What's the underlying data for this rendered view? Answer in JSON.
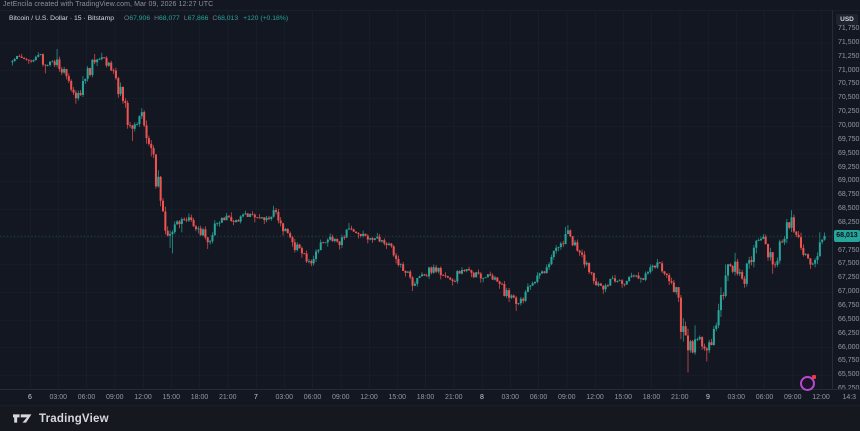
{
  "page": {
    "attribution": "JetEncila created with TradingView.com, Mar 09, 2026 12:27 UTC"
  },
  "legend": {
    "title": "Bitcoin / U.S. Dollar · 15 · Bitstamp",
    "ohlc": {
      "o_label": "O",
      "o": "67,906",
      "h_label": "H",
      "h": "68,077",
      "l_label": "L",
      "l": "67,866",
      "c_label": "C",
      "c": "68,013"
    },
    "change": "+120 (+0.18%)"
  },
  "price_axis": {
    "currency": "USD",
    "last_price": 68013,
    "last_price_label": "68,013",
    "ticks": [
      {
        "v": 71750,
        "label": "71,750"
      },
      {
        "v": 71500,
        "label": "71,500"
      },
      {
        "v": 71250,
        "label": "71,250"
      },
      {
        "v": 71000,
        "label": "71,000"
      },
      {
        "v": 70750,
        "label": "70,750"
      },
      {
        "v": 70500,
        "label": "70,500"
      },
      {
        "v": 70250,
        "label": "70,250"
      },
      {
        "v": 70000,
        "label": "70,000"
      },
      {
        "v": 69750,
        "label": "69,750"
      },
      {
        "v": 69500,
        "label": "69,500"
      },
      {
        "v": 69250,
        "label": "69,250"
      },
      {
        "v": 69000,
        "label": "69,000"
      },
      {
        "v": 68750,
        "label": "68,750"
      },
      {
        "v": 68500,
        "label": "68,500"
      },
      {
        "v": 68250,
        "label": "68,250"
      },
      {
        "v": 67750,
        "label": "67,750"
      },
      {
        "v": 67500,
        "label": "67,500"
      },
      {
        "v": 67250,
        "label": "67,250"
      },
      {
        "v": 67000,
        "label": "67,000"
      },
      {
        "v": 66750,
        "label": "66,750"
      },
      {
        "v": 66500,
        "label": "66,500"
      },
      {
        "v": 66250,
        "label": "66,250"
      },
      {
        "v": 66000,
        "label": "66,000"
      },
      {
        "v": 65750,
        "label": "65,750"
      },
      {
        "v": 65500,
        "label": "65,500"
      },
      {
        "v": 65250,
        "label": "65,250"
      }
    ]
  },
  "time_axis": {
    "ticks": [
      {
        "t": 0,
        "label": "6",
        "day": true
      },
      {
        "t": 3,
        "label": "03:00"
      },
      {
        "t": 6,
        "label": "06:00"
      },
      {
        "t": 9,
        "label": "09:00"
      },
      {
        "t": 12,
        "label": "12:00"
      },
      {
        "t": 15,
        "label": "15:00"
      },
      {
        "t": 18,
        "label": "18:00"
      },
      {
        "t": 21,
        "label": "21:00"
      },
      {
        "t": 24,
        "label": "7",
        "day": true
      },
      {
        "t": 27,
        "label": "03:00"
      },
      {
        "t": 30,
        "label": "06:00"
      },
      {
        "t": 33,
        "label": "09:00"
      },
      {
        "t": 36,
        "label": "12:00"
      },
      {
        "t": 39,
        "label": "15:00"
      },
      {
        "t": 42,
        "label": "18:00"
      },
      {
        "t": 45,
        "label": "21:00"
      },
      {
        "t": 48,
        "label": "8",
        "day": true
      },
      {
        "t": 51,
        "label": "03:00"
      },
      {
        "t": 54,
        "label": "06:00"
      },
      {
        "t": 57,
        "label": "09:00"
      },
      {
        "t": 60,
        "label": "12:00"
      },
      {
        "t": 63,
        "label": "15:00"
      },
      {
        "t": 66,
        "label": "18:00"
      },
      {
        "t": 69,
        "label": "21:00"
      },
      {
        "t": 72,
        "label": "9",
        "day": true
      },
      {
        "t": 75,
        "label": "03:00"
      },
      {
        "t": 78,
        "label": "06:00"
      },
      {
        "t": 81,
        "label": "09:00"
      },
      {
        "t": 84,
        "label": "12:00"
      },
      {
        "t": 87,
        "label": "14:3",
        "grid": false
      }
    ]
  },
  "footer": {
    "brand": "TradingView"
  },
  "colors": {
    "bg": "#131722",
    "up": "#26a69a",
    "down": "#ef5350",
    "grid": "#1d2330",
    "dotted_price_line": "rgba(42,166,154,0.5)",
    "axis_text": "#9598a1",
    "day_text": "#ccd0d9",
    "badge_bg": "#26a69a",
    "badge_text": "#0b0e15",
    "sticker": "#b44bd0",
    "sticker_dot": "#f23645"
  },
  "chart_data": {
    "type": "candlestick",
    "symbol": "Bitcoin / U.S. Dollar",
    "exchange": "Bitstamp",
    "interval": "15",
    "ylim": [
      65250,
      71750
    ],
    "y_tick_step": 250,
    "t_start_hours": -2,
    "bar_hours": 1,
    "last_bar_partial": true,
    "current_bar": {
      "open": 67906,
      "high": 68077,
      "low": 67866,
      "close": 68013,
      "change": "+120 (+0.18%)"
    },
    "ohlc_hourly": [
      [
        71150,
        71290,
        71090,
        71250
      ],
      [
        71250,
        71300,
        71120,
        71180
      ],
      [
        71180,
        71330,
        71140,
        71280
      ],
      [
        71280,
        71310,
        70950,
        71100
      ],
      [
        71100,
        71390,
        71060,
        71200
      ],
      [
        71200,
        71250,
        70840,
        70900
      ],
      [
        70900,
        70950,
        70400,
        70500
      ],
      [
        70500,
        70900,
        70460,
        70850
      ],
      [
        70850,
        71300,
        70800,
        71150
      ],
      [
        71150,
        71320,
        71080,
        71230
      ],
      [
        71230,
        71260,
        70940,
        71000
      ],
      [
        71000,
        71050,
        70400,
        70450
      ],
      [
        70450,
        70500,
        69730,
        69950
      ],
      [
        69950,
        70320,
        69900,
        70250
      ],
      [
        70250,
        70280,
        69450,
        69600
      ],
      [
        69600,
        69650,
        68550,
        68650
      ],
      [
        68650,
        68700,
        67800,
        68050
      ],
      [
        68050,
        68300,
        67700,
        68230
      ],
      [
        68230,
        68420,
        68080,
        68350
      ],
      [
        68350,
        68400,
        68060,
        68150
      ],
      [
        68150,
        68200,
        67780,
        67900
      ],
      [
        67900,
        68300,
        67860,
        68250
      ],
      [
        68250,
        68430,
        68180,
        68380
      ],
      [
        68380,
        68440,
        68210,
        68300
      ],
      [
        68300,
        68470,
        68240,
        68420
      ],
      [
        68420,
        68460,
        68260,
        68350
      ],
      [
        68350,
        68410,
        68230,
        68300
      ],
      [
        68300,
        68560,
        68260,
        68480
      ],
      [
        68480,
        68520,
        68020,
        68100
      ],
      [
        68100,
        68160,
        67820,
        67900
      ],
      [
        67900,
        67960,
        67620,
        67700
      ],
      [
        67700,
        67750,
        67470,
        67520
      ],
      [
        67520,
        67950,
        67480,
        67900
      ],
      [
        67900,
        68060,
        67820,
        68000
      ],
      [
        68000,
        68040,
        67770,
        67850
      ],
      [
        67850,
        68250,
        67800,
        68150
      ],
      [
        68150,
        68200,
        67970,
        68050
      ],
      [
        68050,
        68110,
        67880,
        67950
      ],
      [
        67950,
        68070,
        67890,
        68000
      ],
      [
        68000,
        68050,
        67780,
        67850
      ],
      [
        67850,
        67900,
        67520,
        67600
      ],
      [
        67600,
        67660,
        67280,
        67350
      ],
      [
        67350,
        67400,
        67020,
        67150
      ],
      [
        67150,
        67360,
        67100,
        67300
      ],
      [
        67300,
        67500,
        67240,
        67450
      ],
      [
        67450,
        67490,
        67230,
        67300
      ],
      [
        67300,
        67360,
        67120,
        67200
      ],
      [
        67200,
        67450,
        67150,
        67400
      ],
      [
        67400,
        67460,
        67270,
        67350
      ],
      [
        67350,
        67410,
        67170,
        67250
      ],
      [
        67250,
        67370,
        67180,
        67300
      ],
      [
        67300,
        67340,
        67060,
        67150
      ],
      [
        67150,
        67200,
        66820,
        66900
      ],
      [
        66900,
        66960,
        66660,
        66800
      ],
      [
        66800,
        67160,
        66760,
        67100
      ],
      [
        67100,
        67360,
        67040,
        67300
      ],
      [
        67300,
        67500,
        67240,
        67450
      ],
      [
        67450,
        67850,
        67400,
        67800
      ],
      [
        67800,
        68180,
        67740,
        68050
      ],
      [
        68050,
        68210,
        67830,
        67900
      ],
      [
        67900,
        67950,
        67440,
        67500
      ],
      [
        67500,
        67560,
        67140,
        67200
      ],
      [
        67200,
        67260,
        66970,
        67050
      ],
      [
        67050,
        67300,
        67000,
        67250
      ],
      [
        67250,
        67310,
        67080,
        67150
      ],
      [
        67150,
        67350,
        67100,
        67300
      ],
      [
        67300,
        67360,
        67170,
        67250
      ],
      [
        67250,
        67500,
        67200,
        67450
      ],
      [
        67450,
        67600,
        67380,
        67520
      ],
      [
        67520,
        67560,
        67130,
        67200
      ],
      [
        67200,
        67260,
        66820,
        66900
      ],
      [
        66900,
        66950,
        65550,
        65950
      ],
      [
        65950,
        66400,
        65870,
        66150
      ],
      [
        66150,
        66220,
        65750,
        65950
      ],
      [
        65950,
        66450,
        65900,
        66400
      ],
      [
        66400,
        67500,
        66350,
        67300
      ],
      [
        67300,
        67710,
        67200,
        67550
      ],
      [
        67550,
        67600,
        67080,
        67150
      ],
      [
        67150,
        67850,
        67100,
        67800
      ],
      [
        67800,
        68050,
        67700,
        68000
      ],
      [
        68000,
        68040,
        67330,
        67500
      ],
      [
        67500,
        67950,
        67440,
        67900
      ],
      [
        67900,
        68480,
        67850,
        68350
      ],
      [
        68350,
        68400,
        67760,
        67800
      ],
      [
        67800,
        67860,
        67420,
        67500
      ],
      [
        67500,
        68080,
        67450,
        67900
      ],
      [
        67906,
        68077,
        67866,
        68013
      ]
    ]
  }
}
